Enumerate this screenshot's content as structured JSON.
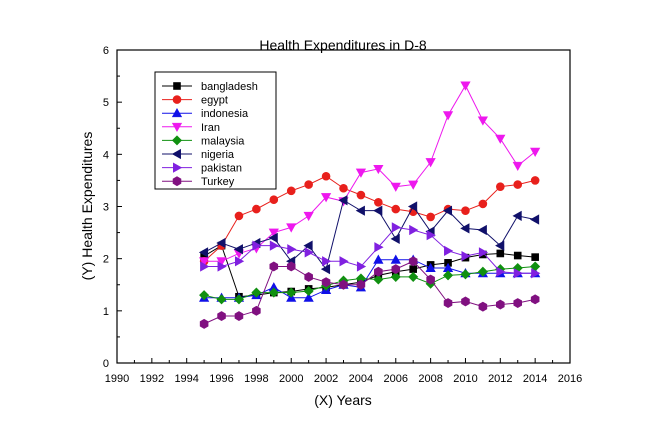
{
  "chart_data": {
    "type": "line",
    "title": "Health Expenditures in D-8",
    "xlabel": "(X) Years",
    "ylabel": "(Y) Health Expenditures",
    "xlim": [
      1990,
      2016
    ],
    "ylim": [
      0,
      6
    ],
    "xticks": [
      1990,
      1992,
      1994,
      1996,
      1998,
      2000,
      2002,
      2004,
      2006,
      2008,
      2010,
      2012,
      2014,
      2016
    ],
    "yticks": [
      0,
      1,
      2,
      3,
      4,
      5,
      6
    ],
    "legend_position": "top-left",
    "x": [
      1995,
      1996,
      1997,
      1998,
      1999,
      2000,
      2001,
      2002,
      2003,
      2004,
      2005,
      2006,
      2007,
      2008,
      2009,
      2010,
      2011,
      2012,
      2013,
      2014
    ],
    "series": [
      {
        "name": "bangladesh",
        "color": "#000000",
        "marker": "square",
        "values": [
          2.05,
          2.25,
          1.27,
          1.3,
          1.35,
          1.37,
          1.42,
          1.45,
          1.5,
          1.55,
          1.68,
          1.75,
          1.8,
          1.88,
          1.92,
          2.02,
          2.08,
          2.1,
          2.06,
          2.03
        ]
      },
      {
        "name": "egypt",
        "color": "#e8201c",
        "marker": "circle",
        "values": [
          1.95,
          2.25,
          2.82,
          2.95,
          3.13,
          3.3,
          3.42,
          3.58,
          3.35,
          3.22,
          3.08,
          2.95,
          2.9,
          2.8,
          2.95,
          2.92,
          3.05,
          3.38,
          3.42,
          3.5
        ]
      },
      {
        "name": "indonesia",
        "color": "#1010e8",
        "marker": "triangle-up",
        "values": [
          1.25,
          1.25,
          1.25,
          1.3,
          1.45,
          1.25,
          1.25,
          1.4,
          1.5,
          1.45,
          1.98,
          1.98,
          1.98,
          1.82,
          1.82,
          1.72,
          1.72,
          1.72,
          1.72,
          1.72
        ]
      },
      {
        "name": "Iran",
        "color": "#ee18ee",
        "marker": "triangle-down",
        "values": [
          1.95,
          1.95,
          2.1,
          2.2,
          2.5,
          2.6,
          2.82,
          3.18,
          3.1,
          3.65,
          3.72,
          3.38,
          3.42,
          3.85,
          4.75,
          5.32,
          4.65,
          4.3,
          3.78,
          4.05
        ]
      },
      {
        "name": "malaysia",
        "color": "#109010",
        "marker": "diamond",
        "values": [
          1.3,
          1.22,
          1.22,
          1.35,
          1.35,
          1.35,
          1.38,
          1.48,
          1.58,
          1.62,
          1.6,
          1.65,
          1.65,
          1.52,
          1.68,
          1.7,
          1.75,
          1.8,
          1.82,
          1.85
        ]
      },
      {
        "name": "nigeria",
        "color": "#10106a",
        "marker": "triangle-left",
        "values": [
          2.12,
          2.3,
          2.18,
          2.3,
          2.4,
          1.95,
          2.25,
          1.8,
          3.12,
          2.92,
          2.92,
          2.38,
          3.0,
          2.52,
          2.92,
          2.58,
          2.55,
          2.25,
          2.82,
          2.75
        ]
      },
      {
        "name": "pakistan",
        "color": "#8020e0",
        "marker": "triangle-right",
        "values": [
          1.85,
          1.85,
          1.95,
          2.25,
          2.25,
          2.18,
          2.12,
          1.95,
          1.95,
          1.85,
          2.22,
          2.6,
          2.55,
          2.45,
          2.15,
          2.05,
          2.12,
          1.75,
          1.72,
          1.72
        ]
      },
      {
        "name": "Turkey",
        "color": "#801080",
        "marker": "hexagon",
        "values": [
          0.75,
          0.9,
          0.9,
          1.0,
          1.85,
          1.85,
          1.65,
          1.55,
          1.5,
          1.5,
          1.75,
          1.8,
          1.95,
          1.6,
          1.15,
          1.18,
          1.08,
          1.12,
          1.15,
          1.22
        ]
      }
    ]
  }
}
